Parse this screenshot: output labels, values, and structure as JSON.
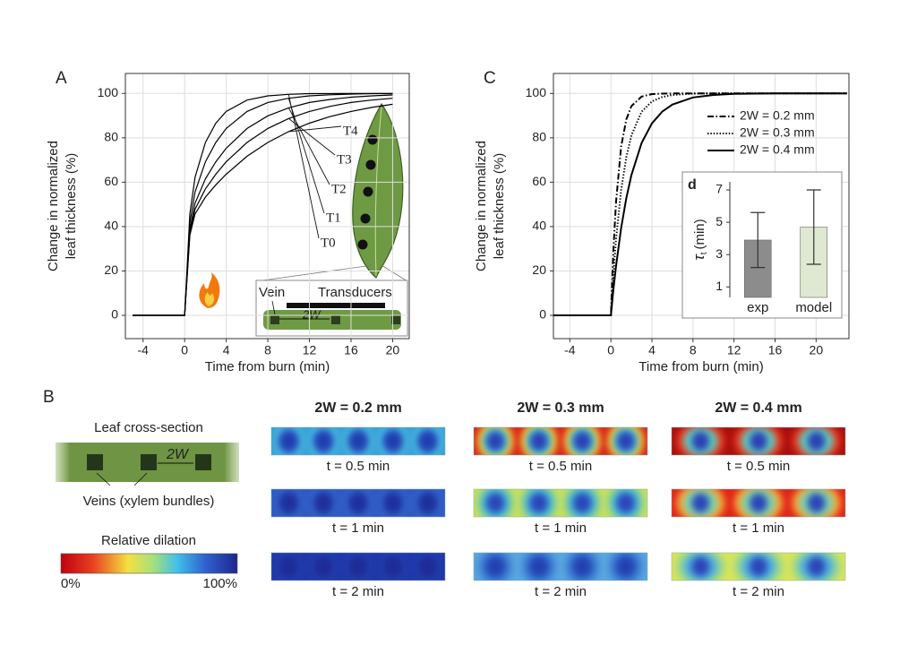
{
  "chart_data": [
    {
      "type": "line",
      "panel_label": "A",
      "xlabel": "Time from burn (min)",
      "ylabel": [
        "Change in normalized",
        "leaf thickness (%)"
      ],
      "x": [
        -5,
        -4,
        -2,
        0,
        0.5,
        1,
        2,
        3,
        4,
        6,
        8,
        10,
        12,
        14,
        16,
        18,
        20
      ],
      "series": [
        {
          "name": "T0",
          "color": "#000000",
          "values": [
            0,
            0,
            0,
            0,
            45.7,
            62.2,
            77.9,
            86.6,
            91.9,
            97,
            98.9,
            99.6,
            99.9,
            99.9,
            100,
            100,
            100
          ]
        },
        {
          "name": "T1",
          "color": "#000000",
          "values": [
            0,
            0,
            0,
            0,
            41.6,
            55.6,
            69.2,
            77.9,
            84.2,
            91.9,
            95.9,
            97.8,
            98.9,
            99.4,
            99.7,
            99.9,
            99.9
          ]
        },
        {
          "name": "T2",
          "color": "#000000",
          "values": [
            0,
            0,
            0,
            0,
            38.7,
            50.5,
            61.5,
            69.2,
            75.3,
            84.2,
            89.9,
            93.5,
            95.9,
            97.3,
            98.3,
            98.9,
            99.3
          ]
        },
        {
          "name": "T3",
          "color": "#000000",
          "values": [
            0,
            0,
            0,
            0,
            37.2,
            47.8,
            57,
            63.6,
            69.2,
            77.9,
            84.2,
            88.7,
            91.9,
            94.2,
            95.9,
            97,
            97.8
          ]
        },
        {
          "name": "T4",
          "color": "#000000",
          "values": [
            0,
            0,
            0,
            0,
            36.1,
            45.7,
            53.3,
            58.8,
            63.6,
            71.7,
            77.9,
            82.8,
            86.6,
            89.6,
            91.9,
            93.7,
            95.1
          ]
        }
      ],
      "xlim": [
        -5.7,
        21.6
      ],
      "xticks": [
        -4,
        0,
        4,
        8,
        12,
        16,
        20
      ],
      "ylim": [
        -10.5,
        109
      ],
      "yticks": [
        0,
        20,
        40,
        60,
        80,
        100
      ],
      "grid": true,
      "legend": "none",
      "annotations": {
        "vein": "Vein",
        "transducers": "Transducers",
        "spacing": "2W"
      }
    },
    {
      "type": "line",
      "panel_label": "C",
      "xlabel": "Time from burn (min)",
      "ylabel": [
        "Change in normalized",
        "leaf thickness (%)"
      ],
      "x": [
        -5.6,
        0,
        0.25,
        0.5,
        1,
        1.5,
        2,
        3,
        4,
        5,
        6,
        8,
        10,
        12,
        16,
        23
      ],
      "series": [
        {
          "name": "2W = 0.2 mm",
          "color": "#000000",
          "dash": "dashdot",
          "values": [
            0,
            0,
            30,
            51,
            76,
            88.3,
            94.3,
            98.6,
            99.7,
            99.9,
            100,
            100,
            100,
            100,
            100,
            100
          ]
        },
        {
          "name": "2W = 0.3 mm",
          "color": "#000000",
          "dash": "dotted",
          "values": [
            0,
            0,
            18.8,
            34.1,
            56.5,
            71.3,
            81.1,
            91.8,
            96.4,
            98.4,
            99.3,
            99.9,
            100,
            100,
            100,
            100
          ]
        },
        {
          "name": "2W = 0.4 mm",
          "color": "#000000",
          "dash": "solid",
          "values": [
            0,
            0,
            11.8,
            22.1,
            39.3,
            52.8,
            63.2,
            77.7,
            86.5,
            91.8,
            95,
            98.2,
            99.3,
            99.8,
            100,
            100
          ]
        }
      ],
      "xlim": [
        -5.6,
        23.2
      ],
      "xticks": [
        -4,
        0,
        4,
        8,
        12,
        16,
        20
      ],
      "ylim": [
        -10.5,
        109
      ],
      "yticks": [
        0,
        20,
        40,
        60,
        80,
        100
      ],
      "grid": true,
      "legend": "upper right"
    },
    {
      "type": "bar",
      "panel_label": "d",
      "ylabel": {
        "symbol": "τ",
        "subscript": "t",
        "unit": "(min)"
      },
      "categories": [
        "exp",
        "model"
      ],
      "values": [
        3.9,
        4.7
      ],
      "errors": [
        1.7,
        2.3
      ],
      "colors": [
        "#8c8c8c",
        "#dfe8d0"
      ],
      "ylim": [
        0.35,
        7.5
      ],
      "yticks": [
        1,
        3,
        5,
        7
      ],
      "grid": false
    }
  ],
  "panel_b": {
    "label": "B",
    "cross_section_title": "Leaf cross-section",
    "spacing_label": "2W",
    "veins_label": "Veins (xylem bundles)",
    "colorbar_title": "Relative dilation",
    "colorbar_min": "0%",
    "colorbar_max": "100%",
    "columns": [
      "2W = 0.2 mm",
      "2W = 0.3 mm",
      "2W = 0.4 mm"
    ],
    "time_labels": [
      [
        "t = 0.5 min",
        "t = 1 min",
        "t = 2 min"
      ],
      [
        "t = 0.5 min",
        "t = 1 min",
        "t = 2 min"
      ],
      [
        "t = 0.5 min",
        "t = 1 min",
        "t = 2 min"
      ]
    ]
  }
}
